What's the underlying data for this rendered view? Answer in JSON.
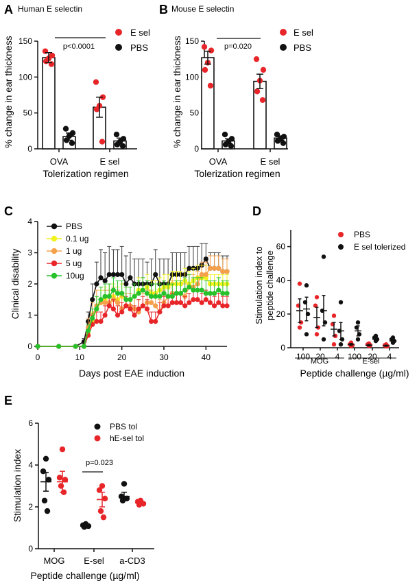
{
  "colors": {
    "red": "#e8262a",
    "black": "#111111",
    "yellow": "#f2f21c",
    "orange": "#f5a04a",
    "green": "#27c22b",
    "axis": "#111111",
    "errorbar": "#3a3a3a"
  },
  "chart_data": [
    {
      "panel": "A",
      "type": "bar",
      "title": "Human E selectin",
      "ylabel": "% change in ear thickness",
      "xlabel": "Tolerization regimen",
      "ylim": [
        0,
        150
      ],
      "yticks": [
        0,
        50,
        100,
        150
      ],
      "categories": [
        "OVA",
        "E sel"
      ],
      "legend": [
        {
          "label": "E sel",
          "color": "red"
        },
        {
          "label": "PBS",
          "color": "black"
        }
      ],
      "annotation": "p<0.0001",
      "bars": [
        {
          "group": 0,
          "series": "E sel",
          "color": "red",
          "mean": 127,
          "sem": 7,
          "points": [
            136,
            130,
            126,
            122,
            118
          ]
        },
        {
          "group": 0,
          "series": "PBS",
          "color": "black",
          "mean": 17,
          "sem": 5,
          "points": [
            28,
            22,
            18,
            12,
            8
          ]
        },
        {
          "group": 1,
          "series": "E sel",
          "color": "red",
          "mean": 58,
          "sem": 14,
          "points": [
            93,
            72,
            60,
            55,
            10
          ]
        },
        {
          "group": 1,
          "series": "PBS",
          "color": "black",
          "mean": 11,
          "sem": 4,
          "points": [
            20,
            14,
            10,
            6,
            4
          ]
        }
      ]
    },
    {
      "panel": "B",
      "type": "bar",
      "title": "Mouse E selectin",
      "ylabel": "% change in ear thickness",
      "xlabel": "Tolerization regimen",
      "ylim": [
        0,
        150
      ],
      "yticks": [
        0,
        50,
        100,
        150
      ],
      "categories": [
        "OVA",
        "E sel"
      ],
      "legend": [
        {
          "label": "E sel",
          "color": "red"
        },
        {
          "label": "PBS",
          "color": "black"
        }
      ],
      "annotation": "p=0.020",
      "bars": [
        {
          "group": 0,
          "series": "E sel",
          "color": "red",
          "mean": 127,
          "sem": 9,
          "points": [
            142,
            137,
            120,
            110,
            88
          ]
        },
        {
          "group": 0,
          "series": "PBS",
          "color": "black",
          "mean": 11,
          "sem": 3,
          "points": [
            20,
            14,
            10,
            6,
            4
          ]
        },
        {
          "group": 1,
          "series": "E sel",
          "color": "red",
          "mean": 94,
          "sem": 10,
          "points": [
            125,
            110,
            95,
            80,
            68
          ]
        },
        {
          "group": 1,
          "series": "PBS",
          "color": "black",
          "mean": 15,
          "sem": 3,
          "points": [
            20,
            17,
            14,
            11,
            8
          ]
        }
      ]
    },
    {
      "panel": "C",
      "type": "line",
      "xlabel": "Days post EAE induction",
      "ylabel": "Clinical disability",
      "xlim": [
        0,
        45
      ],
      "ylim": [
        0,
        4
      ],
      "xticks": [
        0,
        10,
        20,
        30,
        40
      ],
      "yticks": [
        0,
        1,
        2,
        3,
        4
      ],
      "x": [
        0,
        5,
        9,
        11,
        12,
        13,
        14,
        15,
        16,
        17,
        18,
        19,
        20,
        21,
        22,
        23,
        24,
        25,
        26,
        27,
        28,
        29,
        30,
        31,
        32,
        33,
        34,
        35,
        36,
        37,
        38,
        39,
        40,
        41,
        42,
        43,
        44,
        45
      ],
      "series": [
        {
          "name": "PBS",
          "color": "black",
          "values": [
            0,
            0,
            0,
            0.15,
            0.8,
            1.5,
            2.0,
            2.2,
            2.1,
            2.3,
            2.3,
            2.3,
            2.3,
            2.0,
            2.2,
            2.0,
            2.0,
            2.0,
            2.0,
            2.0,
            2.3,
            2.0,
            2.0,
            2.0,
            2.3,
            2.3,
            2.3,
            2.3,
            2.5,
            2.5,
            2.5,
            2.6,
            2.8,
            2.5,
            2.5,
            2.5,
            2.4,
            2.4
          ],
          "err": [
            0,
            0,
            0,
            0.1,
            0.3,
            0.5,
            0.7,
            0.9,
            0.9,
            0.9,
            0.8,
            0.8,
            0.9,
            0.9,
            0.8,
            0.8,
            0.8,
            0.8,
            0.7,
            0.8,
            0.8,
            0.8,
            0.8,
            0.8,
            0.7,
            0.7,
            0.7,
            0.7,
            0.7,
            0.7,
            0.7,
            0.7,
            0.5,
            0.5,
            0.5,
            0.5,
            0.5,
            0.5
          ]
        },
        {
          "name": "0.1 ug",
          "color": "yellow",
          "values": [
            0,
            0,
            0,
            0,
            0.4,
            0.8,
            1.2,
            1.4,
            1.5,
            1.6,
            1.6,
            1.5,
            1.6,
            1.5,
            1.5,
            1.6,
            1.8,
            1.8,
            1.9,
            1.7,
            1.7,
            1.8,
            1.9,
            1.9,
            2.0,
            2.0,
            2.0,
            2.1,
            2.0,
            2.1,
            2.2,
            2.2,
            2.2,
            2.0,
            2.0,
            2.0,
            2.0,
            2.0
          ],
          "err": [
            0,
            0,
            0,
            0,
            0.2,
            0.3,
            0.4,
            0.4,
            0.4,
            0.4,
            0.4,
            0.4,
            0.4,
            0.4,
            0.4,
            0.4,
            0.4,
            0.4,
            0.4,
            0.4,
            0.4,
            0.4,
            0.4,
            0.4,
            0.4,
            0.4,
            0.4,
            0.4,
            0.4,
            0.4,
            0.4,
            0.4,
            0.4,
            0.3,
            0.3,
            0.3,
            0.3,
            0.3
          ]
        },
        {
          "name": "1 ug",
          "color": "orange",
          "values": [
            0,
            0,
            0,
            0,
            0.6,
            1.0,
            1.3,
            1.4,
            1.4,
            1.4,
            1.5,
            1.4,
            1.2,
            1.3,
            1.3,
            1.2,
            1.1,
            1.3,
            1.4,
            1.4,
            1.3,
            1.1,
            1.4,
            1.6,
            1.7,
            1.7,
            1.7,
            1.6,
            1.9,
            1.9,
            2.0,
            2.3,
            2.3,
            2.5,
            2.5,
            2.5,
            2.4,
            2.4
          ],
          "err": [
            0,
            0,
            0,
            0,
            0.3,
            0.4,
            0.5,
            0.5,
            0.4,
            0.4,
            0.4,
            0.4,
            0.4,
            0.4,
            0.4,
            0.4,
            0.4,
            0.4,
            0.4,
            0.4,
            0.4,
            0.4,
            0.4,
            0.4,
            0.4,
            0.4,
            0.4,
            0.4,
            0.4,
            0.4,
            0.4,
            0.4,
            0.4,
            0.4,
            0.4,
            0.4,
            0.4,
            0.4
          ]
        },
        {
          "name": "5 ug",
          "color": "red",
          "values": [
            0,
            0,
            0,
            0,
            0.35,
            0.7,
            0.8,
            0.8,
            1.0,
            1.3,
            1.2,
            1.0,
            1.1,
            1.3,
            1.2,
            1.0,
            1.2,
            1.3,
            1.2,
            0.8,
            0.8,
            1.1,
            1.3,
            1.3,
            1.4,
            1.4,
            1.4,
            1.3,
            1.4,
            1.5,
            1.5,
            1.4,
            1.5,
            1.4,
            1.3,
            1.4,
            1.3,
            1.3
          ],
          "err": [
            0,
            0,
            0,
            0,
            0.2,
            0.3,
            0.3,
            0.3,
            0.3,
            0.3,
            0.3,
            0.3,
            0.3,
            0.3,
            0.3,
            0.3,
            0.3,
            0.3,
            0.3,
            0.3,
            0.3,
            0.3,
            0.3,
            0.3,
            0.3,
            0.3,
            0.3,
            0.3,
            0.3,
            0.3,
            0.3,
            0.3,
            0.3,
            0.3,
            0.3,
            0.3,
            0.3,
            0.3
          ]
        },
        {
          "name": "10ug",
          "color": "green",
          "values": [
            0,
            0,
            0,
            0,
            0.5,
            0.9,
            1.2,
            1.5,
            1.6,
            1.6,
            1.8,
            1.7,
            1.7,
            1.5,
            1.5,
            1.6,
            1.7,
            1.8,
            1.7,
            1.6,
            1.6,
            1.6,
            1.7,
            1.6,
            1.6,
            1.7,
            1.7,
            1.8,
            1.9,
            1.8,
            1.8,
            1.8,
            1.7,
            1.7,
            1.7,
            1.8,
            1.7,
            1.7
          ],
          "err": [
            0,
            0,
            0,
            0,
            0.2,
            0.3,
            0.4,
            0.4,
            0.4,
            0.4,
            0.4,
            0.4,
            0.4,
            0.4,
            0.4,
            0.4,
            0.4,
            0.4,
            0.4,
            0.4,
            0.4,
            0.4,
            0.4,
            0.4,
            0.4,
            0.4,
            0.4,
            0.4,
            0.4,
            0.4,
            0.4,
            0.4,
            0.4,
            0.4,
            0.4,
            0.4,
            0.4,
            0.4
          ]
        }
      ]
    },
    {
      "panel": "D",
      "type": "scatter",
      "ylabel": "Stimulation index to peptide challenge",
      "xlabel": "Peptide challenge (µg/ml)",
      "ylim": [
        0,
        70
      ],
      "yticks": [
        0,
        20,
        40,
        60
      ],
      "legend": [
        {
          "label": "PBS",
          "color": "red"
        },
        {
          "label": "E sel tolerized",
          "color": "black"
        }
      ],
      "tick_labels": [
        "100",
        "20",
        "4",
        "100",
        "20",
        "4"
      ],
      "group_labels": [
        "MOG",
        "E-sel"
      ],
      "groups": [
        {
          "series": "PBS",
          "color": "red",
          "pos": 0.8,
          "mean": 22,
          "sem": 7,
          "points": [
            38,
            25,
            15,
            12
          ]
        },
        {
          "series": "E sel tolerized",
          "color": "black",
          "pos": 1.2,
          "mean": 23,
          "sem": 7,
          "points": [
            37,
            27,
            20,
            8
          ]
        },
        {
          "series": "PBS",
          "color": "red",
          "pos": 1.8,
          "mean": 18,
          "sem": 6,
          "points": [
            30,
            25,
            12,
            8
          ]
        },
        {
          "series": "E sel tolerized",
          "color": "black",
          "pos": 2.2,
          "mean": 22,
          "sem": 9,
          "points": [
            54,
            22,
            15,
            5
          ]
        },
        {
          "series": "PBS",
          "color": "red",
          "pos": 2.8,
          "mean": 11,
          "sem": 4,
          "points": [
            19,
            14,
            7,
            2
          ]
        },
        {
          "series": "E sel tolerized",
          "color": "black",
          "pos": 3.2,
          "mean": 10,
          "sem": 5,
          "points": [
            27,
            10,
            5,
            2
          ]
        },
        {
          "series": "PBS",
          "color": "red",
          "pos": 3.8,
          "mean": 2,
          "sem": 0.5,
          "points": [
            3,
            2,
            1.5,
            1
          ]
        },
        {
          "series": "E sel tolerized",
          "color": "black",
          "pos": 4.2,
          "mean": 10,
          "sem": 3,
          "points": [
            15,
            12,
            8,
            5
          ]
        },
        {
          "series": "PBS",
          "color": "red",
          "pos": 4.8,
          "mean": 1.5,
          "sem": 0.4,
          "points": [
            2.5,
            2,
            1.5,
            1
          ]
        },
        {
          "series": "E sel tolerized",
          "color": "black",
          "pos": 5.2,
          "mean": 5,
          "sem": 1,
          "points": [
            7,
            6,
            5,
            4
          ]
        },
        {
          "series": "PBS",
          "color": "red",
          "pos": 5.8,
          "mean": 1.2,
          "sem": 0.3,
          "points": [
            2,
            1.5,
            1,
            0.8
          ]
        },
        {
          "series": "E sel tolerized",
          "color": "black",
          "pos": 6.2,
          "mean": 4,
          "sem": 1,
          "points": [
            6,
            5,
            4,
            3
          ]
        }
      ]
    },
    {
      "panel": "E",
      "type": "scatter",
      "ylabel": "Stimulation index",
      "xlabel": "Peptide challenge (µg/ml)",
      "ylim": [
        0,
        6
      ],
      "yticks": [
        0,
        2,
        4,
        6
      ],
      "categories": [
        "MOG",
        "E-sel",
        "a-CD3"
      ],
      "legend": [
        {
          "label": "PBS tol",
          "color": "black"
        },
        {
          "label": "hE-sel tol",
          "color": "red"
        }
      ],
      "annotation": "p=0.023",
      "groups": [
        {
          "series": "PBS tol",
          "color": "black",
          "cat": 0,
          "offset": -0.2,
          "mean": 3.2,
          "sem": 0.45,
          "points": [
            4.3,
            3.7,
            3.3,
            2.3,
            1.8
          ]
        },
        {
          "series": "hE-sel tol",
          "color": "red",
          "cat": 0,
          "offset": 0.2,
          "mean": 3.2,
          "sem": 0.5,
          "points": [
            4.75,
            3.4,
            3.3,
            3.0,
            2.7
          ]
        },
        {
          "series": "PBS tol",
          "color": "black",
          "cat": 1,
          "offset": -0.2,
          "mean": 1.1,
          "sem": 0.05,
          "points": [
            1.18,
            1.12,
            1.08,
            1.04
          ]
        },
        {
          "series": "hE-sel tol",
          "color": "red",
          "cat": 1,
          "offset": 0.2,
          "mean": 2.35,
          "sem": 0.35,
          "points": [
            3.0,
            2.8,
            2.4,
            1.8,
            1.5
          ]
        },
        {
          "series": "PBS tol",
          "color": "black",
          "cat": 2,
          "offset": -0.2,
          "mean": 2.5,
          "sem": 0.2,
          "points": [
            3.1,
            2.5,
            2.4,
            2.3
          ]
        },
        {
          "series": "hE-sel tol",
          "color": "red",
          "cat": 2,
          "offset": 0.2,
          "mean": 2.2,
          "sem": 0.08,
          "points": [
            2.3,
            2.25,
            2.15,
            2.1
          ]
        }
      ]
    }
  ]
}
